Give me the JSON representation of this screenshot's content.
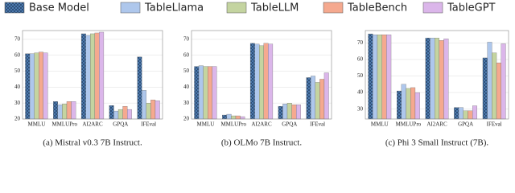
{
  "chart_data": [
    {
      "type": "bar",
      "caption": "(a) Mistral v0.3 7B Instruct.",
      "categories": [
        "MMLU",
        "MMLUPro",
        "AI2ARC",
        "GPQA",
        "IFEval"
      ],
      "series": [
        {
          "name": "Base Model",
          "color": "#4f7fb5",
          "hatch": true,
          "values": [
            61,
            31,
            73.5,
            28.5,
            59
          ]
        },
        {
          "name": "TableLlama",
          "color": "#aec7ec",
          "values": [
            61,
            29,
            72.5,
            25,
            38
          ]
        },
        {
          "name": "TableLLM",
          "color": "#c4d4a0",
          "values": [
            61.5,
            29.5,
            73.5,
            26,
            30
          ]
        },
        {
          "name": "TableBench",
          "color": "#f5a98f",
          "values": [
            62,
            31,
            74,
            28,
            32
          ]
        },
        {
          "name": "TableGPT",
          "color": "#dbb6ea",
          "values": [
            61.5,
            31,
            74.5,
            26,
            31.5
          ]
        }
      ],
      "ylim": [
        20,
        75.5
      ],
      "yticks": [
        20,
        30,
        40,
        50,
        60,
        70
      ],
      "grid": true
    },
    {
      "type": "bar",
      "caption": "(b) OLMo 7B Instruct.",
      "series": [
        {
          "values": [
            53,
            22.5,
            67.5,
            28,
            46
          ]
        },
        {
          "values": [
            53.5,
            23,
            67,
            29.5,
            47
          ]
        },
        {
          "values": [
            53,
            22,
            66,
            30,
            43
          ]
        },
        {
          "values": [
            53,
            22,
            67.5,
            29,
            45
          ]
        },
        {
          "values": [
            53,
            21.5,
            67,
            29,
            49
          ]
        }
      ],
      "ylim": [
        20,
        75.5
      ],
      "yticks": [
        20,
        30,
        40,
        50,
        60,
        70
      ],
      "grid": true
    },
    {
      "type": "bar",
      "caption": "(c) Phi 3 Small Instruct (7B).",
      "series": [
        {
          "values": [
            75.5,
            41,
            73,
            31,
            61
          ]
        },
        {
          "values": [
            75,
            45,
            73,
            31,
            70.5
          ]
        },
        {
          "values": [
            75,
            42.5,
            73,
            29,
            64
          ]
        },
        {
          "values": [
            75,
            43,
            71.5,
            29,
            58
          ]
        },
        {
          "values": [
            75,
            40,
            72.5,
            32,
            69.5
          ]
        }
      ],
      "ylim": [
        24,
        77.5
      ],
      "yticks": [
        30,
        40,
        50,
        60,
        70
      ],
      "grid": true
    }
  ]
}
